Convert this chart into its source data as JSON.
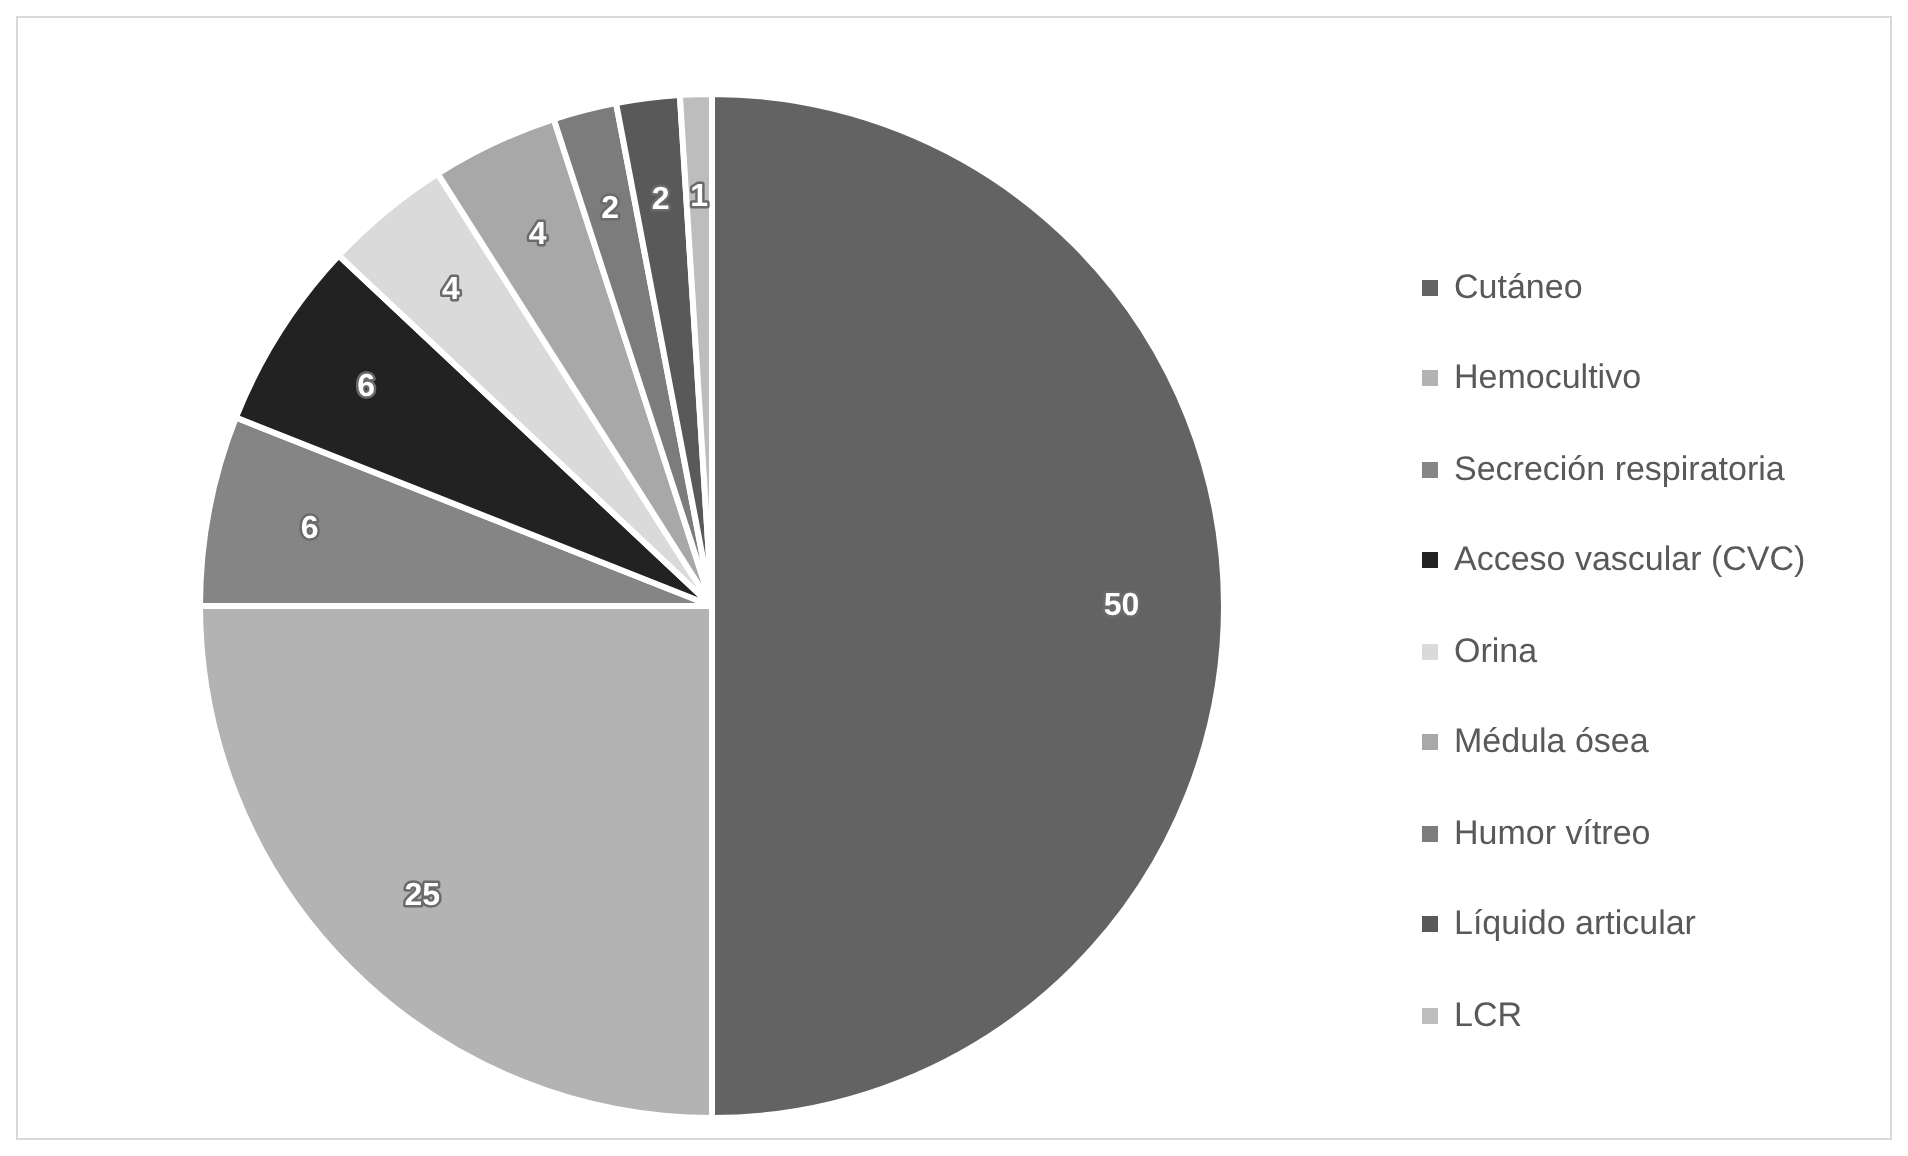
{
  "chart_data": {
    "type": "pie",
    "categories": [
      "Cutáneo",
      "Hemocultivo",
      "Secreción respiratoria",
      "Acceso vascular (CVC)",
      "Orina",
      "Médula ósea",
      "Humor vítreo",
      "Líquido articular",
      "LCR"
    ],
    "values": [
      50,
      25,
      6,
      6,
      4,
      4,
      2,
      2,
      1
    ],
    "colors": [
      "#636363",
      "#b3b3b3",
      "#858585",
      "#222222",
      "#dadada",
      "#a8a8a8",
      "#7c7c7c",
      "#595959",
      "#bdbdbd"
    ],
    "data_labels": true,
    "legend": "right"
  }
}
